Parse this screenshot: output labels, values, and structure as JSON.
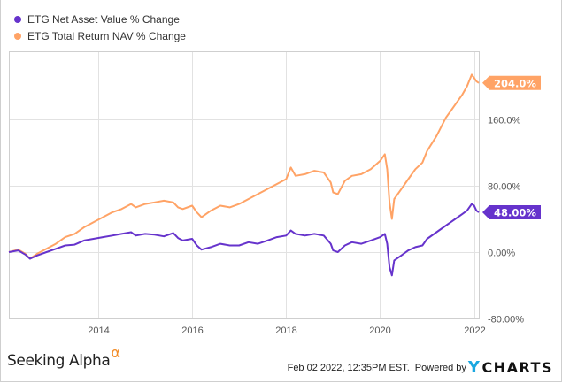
{
  "chart_data": {
    "type": "line",
    "title": "",
    "xlabel": "",
    "ylabel": "",
    "xlim": [
      2012.1,
      2022.1
    ],
    "ylim": [
      -80,
      240
    ],
    "x_ticks": [
      2014,
      2016,
      2018,
      2020,
      2022
    ],
    "x_tick_labels": [
      "2014",
      "2016",
      "2018",
      "2020",
      "2022"
    ],
    "y_ticks": [
      -80,
      0,
      80,
      160
    ],
    "y_tick_labels": [
      "-80.00%",
      "0.00%",
      "80.00%",
      "160.0%"
    ],
    "grid": true,
    "legend_position": "top-left",
    "series": [
      {
        "name": "ETG Net Asset Value % Change",
        "color": "#6633cc",
        "end_label": "48.00%",
        "end_value": 48.0,
        "points": [
          [
            2012.1,
            0
          ],
          [
            2012.3,
            2
          ],
          [
            2012.45,
            -3
          ],
          [
            2012.55,
            -8
          ],
          [
            2012.7,
            -4
          ],
          [
            2012.9,
            0
          ],
          [
            2013.1,
            4
          ],
          [
            2013.3,
            8
          ],
          [
            2013.5,
            9
          ],
          [
            2013.7,
            14
          ],
          [
            2013.9,
            16
          ],
          [
            2014.1,
            18
          ],
          [
            2014.3,
            20
          ],
          [
            2014.5,
            22
          ],
          [
            2014.7,
            24
          ],
          [
            2014.8,
            20
          ],
          [
            2015.0,
            22
          ],
          [
            2015.2,
            21
          ],
          [
            2015.4,
            19
          ],
          [
            2015.6,
            23
          ],
          [
            2015.7,
            17
          ],
          [
            2015.8,
            14
          ],
          [
            2016.0,
            16
          ],
          [
            2016.1,
            8
          ],
          [
            2016.2,
            3
          ],
          [
            2016.4,
            6
          ],
          [
            2016.6,
            10
          ],
          [
            2016.8,
            8
          ],
          [
            2017.0,
            8
          ],
          [
            2017.2,
            12
          ],
          [
            2017.4,
            10
          ],
          [
            2017.6,
            14
          ],
          [
            2017.8,
            18
          ],
          [
            2018.0,
            20
          ],
          [
            2018.1,
            26
          ],
          [
            2018.2,
            22
          ],
          [
            2018.4,
            20
          ],
          [
            2018.6,
            22
          ],
          [
            2018.8,
            20
          ],
          [
            2018.95,
            10
          ],
          [
            2019.0,
            2
          ],
          [
            2019.1,
            0
          ],
          [
            2019.25,
            8
          ],
          [
            2019.4,
            12
          ],
          [
            2019.6,
            10
          ],
          [
            2019.8,
            14
          ],
          [
            2020.0,
            18
          ],
          [
            2020.1,
            22
          ],
          [
            2020.15,
            10
          ],
          [
            2020.2,
            -18
          ],
          [
            2020.25,
            -28
          ],
          [
            2020.3,
            -10
          ],
          [
            2020.45,
            -4
          ],
          [
            2020.6,
            2
          ],
          [
            2020.75,
            6
          ],
          [
            2020.9,
            8
          ],
          [
            2021.0,
            16
          ],
          [
            2021.2,
            24
          ],
          [
            2021.4,
            32
          ],
          [
            2021.6,
            40
          ],
          [
            2021.75,
            46
          ],
          [
            2021.85,
            50
          ],
          [
            2021.95,
            58
          ],
          [
            2022.0,
            56
          ],
          [
            2022.05,
            50
          ],
          [
            2022.1,
            48
          ]
        ]
      },
      {
        "name": "ETG Total Return NAV % Change",
        "color": "#ffa366",
        "end_label": "204.0%",
        "end_value": 204.0,
        "points": [
          [
            2012.1,
            0
          ],
          [
            2012.3,
            3
          ],
          [
            2012.45,
            -2
          ],
          [
            2012.55,
            -8
          ],
          [
            2012.7,
            -2
          ],
          [
            2012.9,
            4
          ],
          [
            2013.1,
            10
          ],
          [
            2013.3,
            18
          ],
          [
            2013.5,
            22
          ],
          [
            2013.7,
            30
          ],
          [
            2013.9,
            36
          ],
          [
            2014.1,
            42
          ],
          [
            2014.3,
            48
          ],
          [
            2014.5,
            52
          ],
          [
            2014.7,
            58
          ],
          [
            2014.8,
            54
          ],
          [
            2015.0,
            58
          ],
          [
            2015.2,
            60
          ],
          [
            2015.4,
            62
          ],
          [
            2015.6,
            60
          ],
          [
            2015.7,
            54
          ],
          [
            2015.8,
            52
          ],
          [
            2016.0,
            56
          ],
          [
            2016.1,
            48
          ],
          [
            2016.2,
            42
          ],
          [
            2016.4,
            50
          ],
          [
            2016.6,
            56
          ],
          [
            2016.8,
            54
          ],
          [
            2017.0,
            58
          ],
          [
            2017.2,
            64
          ],
          [
            2017.4,
            70
          ],
          [
            2017.6,
            76
          ],
          [
            2017.8,
            82
          ],
          [
            2018.0,
            88
          ],
          [
            2018.1,
            102
          ],
          [
            2018.2,
            92
          ],
          [
            2018.4,
            94
          ],
          [
            2018.6,
            98
          ],
          [
            2018.8,
            96
          ],
          [
            2018.95,
            84
          ],
          [
            2019.0,
            72
          ],
          [
            2019.1,
            70
          ],
          [
            2019.25,
            86
          ],
          [
            2019.4,
            92
          ],
          [
            2019.6,
            94
          ],
          [
            2019.8,
            100
          ],
          [
            2020.0,
            110
          ],
          [
            2020.1,
            118
          ],
          [
            2020.15,
            100
          ],
          [
            2020.2,
            60
          ],
          [
            2020.25,
            40
          ],
          [
            2020.3,
            64
          ],
          [
            2020.45,
            76
          ],
          [
            2020.6,
            88
          ],
          [
            2020.75,
            100
          ],
          [
            2020.9,
            108
          ],
          [
            2021.0,
            122
          ],
          [
            2021.2,
            140
          ],
          [
            2021.4,
            162
          ],
          [
            2021.6,
            178
          ],
          [
            2021.75,
            190
          ],
          [
            2021.85,
            200
          ],
          [
            2021.95,
            214
          ],
          [
            2022.0,
            210
          ],
          [
            2022.05,
            206
          ],
          [
            2022.1,
            204
          ]
        ]
      }
    ]
  },
  "legend": {
    "items": [
      {
        "label": "ETG Net Asset Value % Change",
        "color": "#6633cc"
      },
      {
        "label": "ETG Total Return NAV % Change",
        "color": "#ffa366"
      }
    ]
  },
  "footer": {
    "brand": "Seeking Alpha",
    "brand_alpha": "α",
    "timestamp": "Feb 02 2022, 12:35PM EST.",
    "powered_by": "Powered by",
    "ycharts_y": "Y",
    "ycharts_rest": "CHARTS"
  }
}
